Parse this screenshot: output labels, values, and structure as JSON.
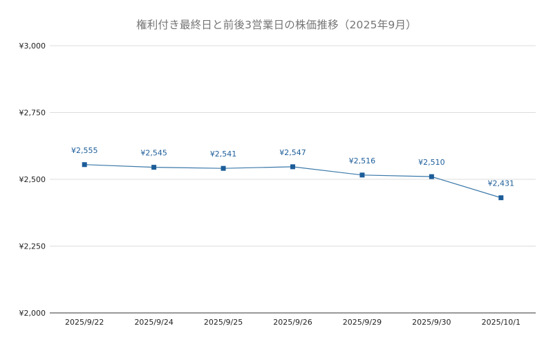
{
  "chart_data": {
    "type": "line",
    "title": "権利付き最終日と前後3営業日の株価推移（2025年9月）",
    "xlabel": "",
    "ylabel": "",
    "categories": [
      "2025/9/22",
      "2025/9/24",
      "2025/9/25",
      "2025/9/26",
      "2025/9/29",
      "2025/9/30",
      "2025/10/1"
    ],
    "series": [
      {
        "values": [
          2555,
          2545,
          2541,
          2547,
          2516,
          2510,
          2431
        ],
        "data_labels": [
          "¥2,555",
          "¥2,545",
          "¥2,541",
          "¥2,547",
          "¥2,516",
          "¥2,510",
          "¥2,431"
        ],
        "color": "#1c5d99",
        "marker": "square"
      }
    ],
    "ylim": [
      2000,
      3000
    ],
    "y_ticks": [
      2000,
      2250,
      2500,
      2750,
      3000
    ],
    "y_tick_labels": [
      "¥2,000",
      "¥2,250",
      "¥2,500",
      "¥2,750",
      "¥3,000"
    ],
    "grid": true,
    "legend": "none"
  }
}
